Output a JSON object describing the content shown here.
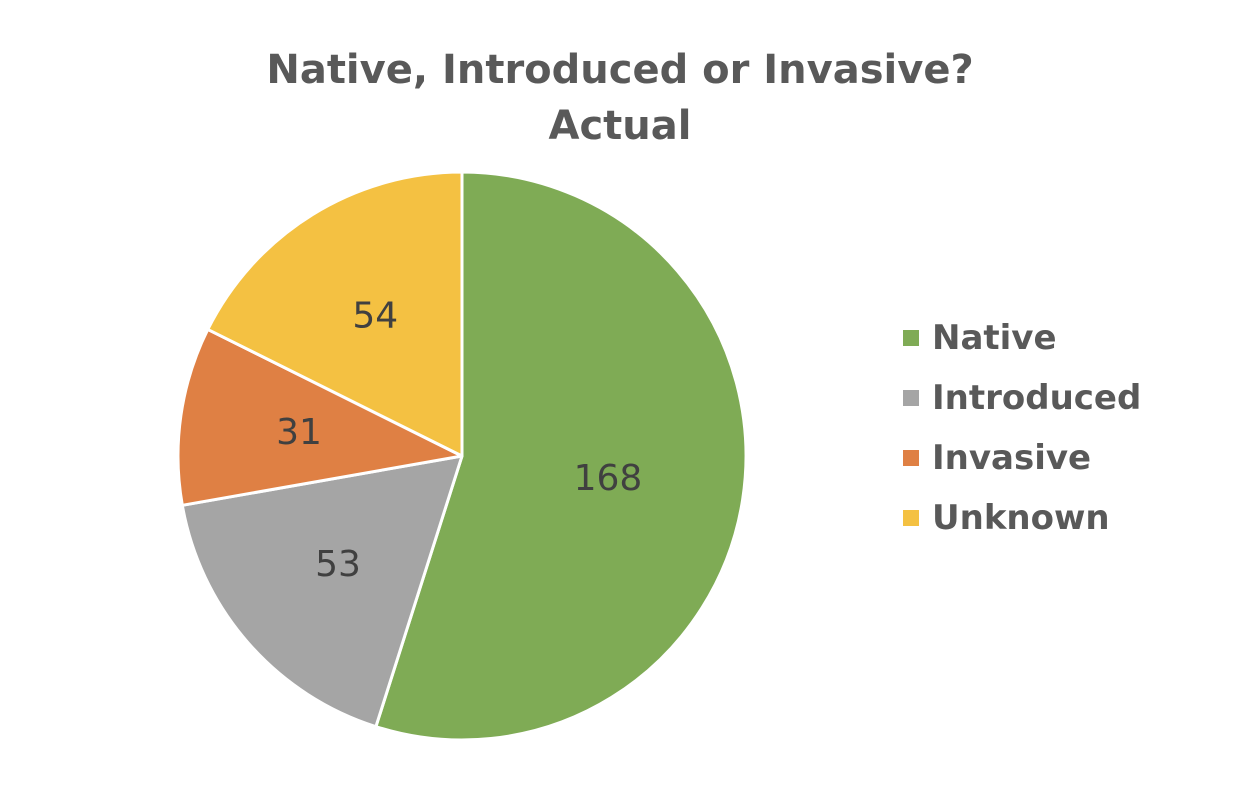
{
  "chart_data": {
    "type": "pie",
    "title": "Native, Introduced or Invasive?",
    "subtitle": "Actual",
    "categories": [
      "Native",
      "Introduced",
      "Invasive",
      "Unknown"
    ],
    "values": [
      168,
      53,
      31,
      54
    ],
    "colors": [
      "#7FAB55",
      "#A5A5A5",
      "#DF8044",
      "#F4C142"
    ],
    "label_color": "#404040",
    "legend_position": "right",
    "start_angle": "top, clockwise"
  }
}
